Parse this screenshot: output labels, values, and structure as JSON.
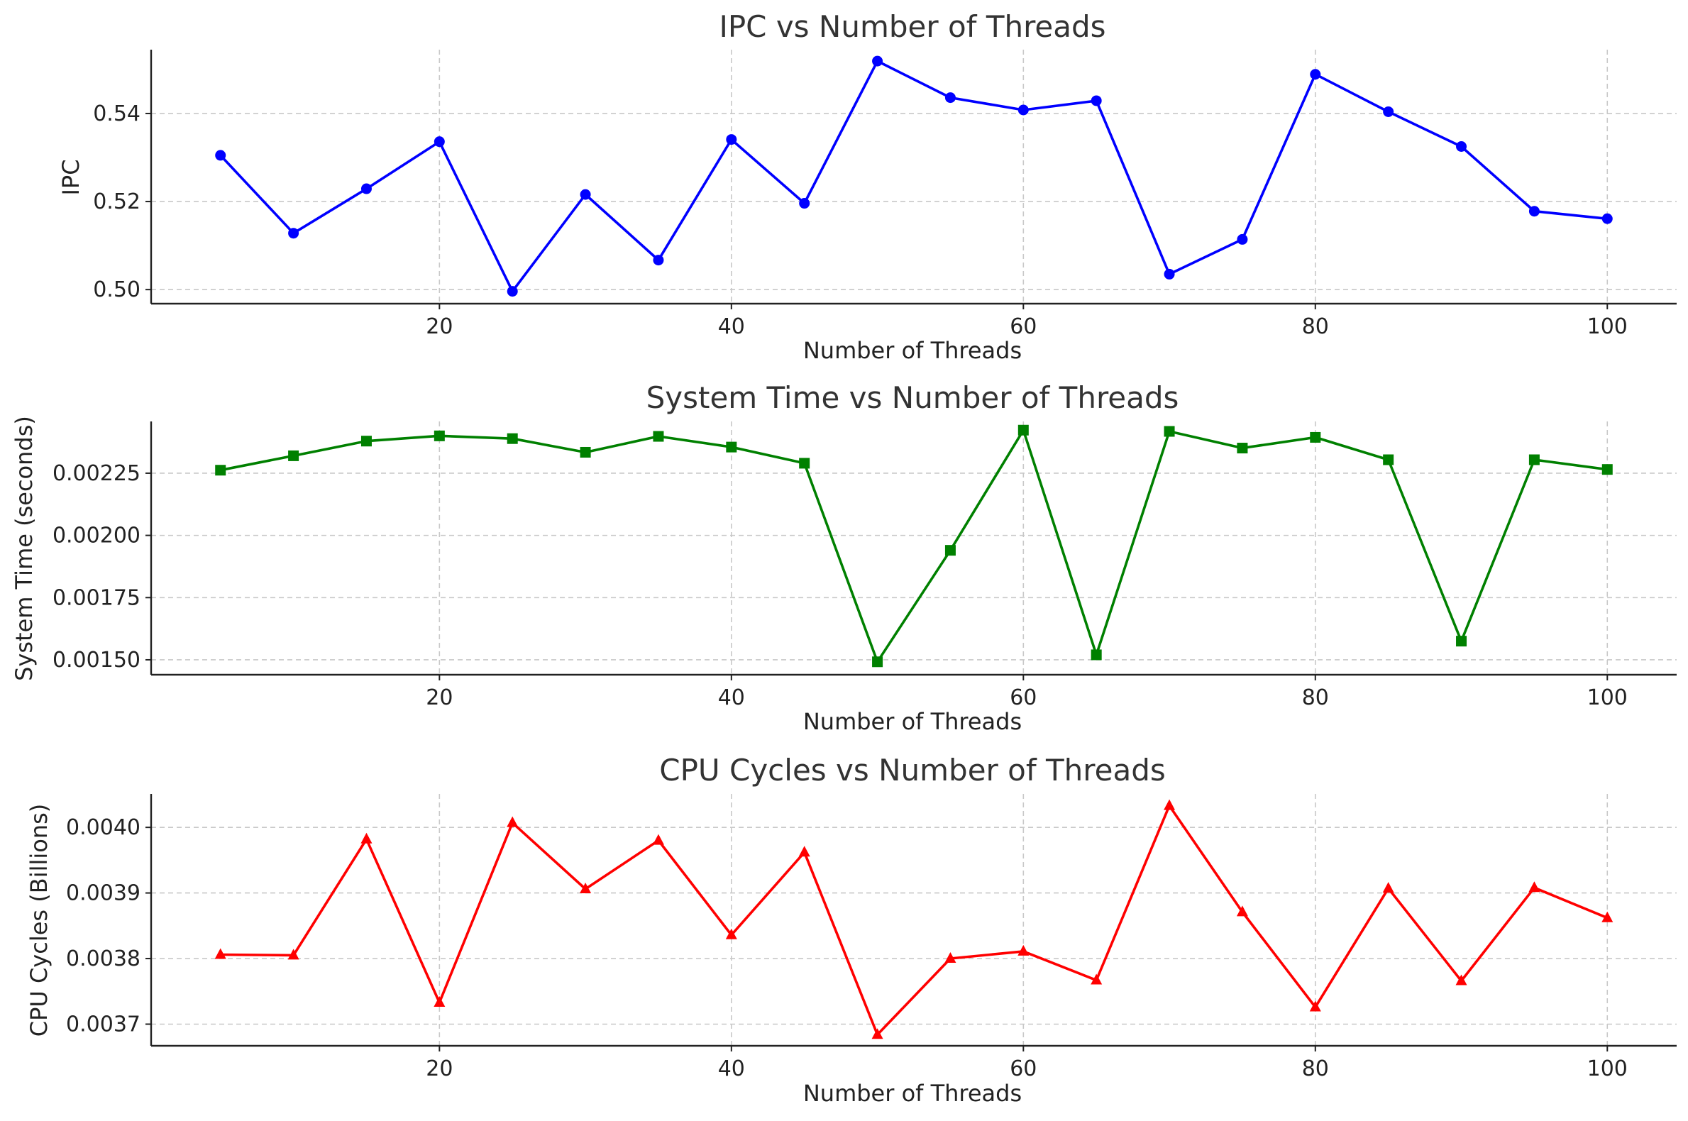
{
  "chart_data": [
    {
      "type": "line",
      "title": "IPC vs Number of Threads",
      "xlabel": "Number of Threads",
      "ylabel": "IPC",
      "xlim": [
        0.25,
        104.75
      ],
      "ylim": [
        0.4968,
        0.5545
      ],
      "xticks": [
        20,
        40,
        60,
        80,
        100
      ],
      "yticks": [
        0.5,
        0.52,
        0.54
      ],
      "ytick_labels": [
        "0.50",
        "0.52",
        "0.54"
      ],
      "grid": true,
      "color": "#0000ff",
      "marker": "circle",
      "series": [
        {
          "x": [
            5,
            10,
            15,
            20,
            25,
            30,
            35,
            40,
            45,
            50,
            55,
            60,
            65,
            70,
            75,
            80,
            85,
            90,
            95,
            100
          ],
          "values": [
            0.5305,
            0.5128,
            0.5229,
            0.5336,
            0.4996,
            0.5216,
            0.5067,
            0.5341,
            0.5196,
            0.5519,
            0.5436,
            0.5408,
            0.5429,
            0.5035,
            0.5114,
            0.5489,
            0.5404,
            0.5325,
            0.5178,
            0.5161
          ]
        }
      ]
    },
    {
      "type": "line",
      "title": "System Time vs Number of Threads",
      "xlabel": "Number of Threads",
      "ylabel": "System Time (seconds)",
      "xlim": [
        0.25,
        104.75
      ],
      "ylim": [
        0.00144,
        0.002458
      ],
      "xticks": [
        20,
        40,
        60,
        80,
        100
      ],
      "yticks": [
        0.0015,
        0.00175,
        0.002,
        0.00225
      ],
      "ytick_labels": [
        "0.00150",
        "0.00175",
        "0.00200",
        "0.00225"
      ],
      "grid": true,
      "color": "#008000",
      "marker": "square",
      "series": [
        {
          "x": [
            5,
            10,
            15,
            20,
            25,
            30,
            35,
            40,
            45,
            50,
            55,
            60,
            65,
            70,
            75,
            80,
            85,
            90,
            95,
            100
          ],
          "values": [
            0.002262,
            0.00232,
            0.002379,
            0.0024,
            0.002389,
            0.002334,
            0.002398,
            0.002355,
            0.00229,
            0.001492,
            0.00194,
            0.002423,
            0.00152,
            0.002418,
            0.002351,
            0.002394,
            0.002304,
            0.001575,
            0.002304,
            0.002265
          ]
        }
      ]
    },
    {
      "type": "line",
      "title": "CPU Cycles vs Number of Threads",
      "xlabel": "Number of Threads",
      "ylabel": "CPU Cycles (Billions)",
      "xlim": [
        0.25,
        104.75
      ],
      "ylim": [
        0.003667,
        0.004051
      ],
      "xticks": [
        20,
        40,
        60,
        80,
        100
      ],
      "yticks": [
        0.0037,
        0.0038,
        0.0039,
        0.004
      ],
      "ytick_labels": [
        "0.0037",
        "0.0038",
        "0.0039",
        "0.0040"
      ],
      "grid": true,
      "color": "#ff0000",
      "marker": "triangle",
      "series": [
        {
          "x": [
            5,
            10,
            15,
            20,
            25,
            30,
            35,
            40,
            45,
            50,
            55,
            60,
            65,
            70,
            75,
            80,
            85,
            90,
            95,
            100
          ],
          "values": [
            0.003806,
            0.003805,
            0.003982,
            0.003733,
            0.004007,
            0.003906,
            0.00398,
            0.003836,
            0.003962,
            0.003684,
            0.0038,
            0.003811,
            0.003767,
            0.004033,
            0.003871,
            0.003726,
            0.003907,
            0.003766,
            0.003908,
            0.003862
          ]
        }
      ]
    }
  ]
}
